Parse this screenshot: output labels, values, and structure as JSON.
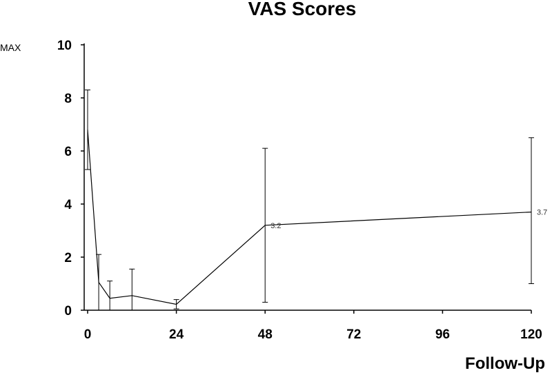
{
  "chart_data": {
    "type": "line",
    "title": "VAS Scores",
    "xlabel": "Follow-Up",
    "y_max_label": "MAX",
    "xlim": [
      0,
      120
    ],
    "ylim": [
      0,
      10
    ],
    "x_ticks": [
      "0",
      "24",
      "48",
      "72",
      "96",
      "120"
    ],
    "y_ticks": [
      "0",
      "2",
      "4",
      "6",
      "8",
      "10"
    ],
    "grid": false,
    "series": [
      {
        "points": [
          {
            "x": 0,
            "y": 6.8,
            "err_low": 5.3,
            "err_high": 8.3
          },
          {
            "x": 3,
            "y": 1.05,
            "err_low": 0,
            "err_high": 2.1
          },
          {
            "x": 6,
            "y": 0.45,
            "err_low": 0,
            "err_high": 1.1
          },
          {
            "x": 12,
            "y": 0.55,
            "err_low": 0,
            "err_high": 1.55
          },
          {
            "x": 24,
            "y": 0.22,
            "err_low": 0.05,
            "err_high": 0.4
          },
          {
            "x": 48,
            "y": 3.2,
            "err_low": 0.3,
            "err_high": 6.1,
            "label": "3.2"
          },
          {
            "x": 120,
            "y": 3.7,
            "err_low": 1.0,
            "err_high": 6.5,
            "label": "3.7"
          }
        ]
      }
    ]
  }
}
